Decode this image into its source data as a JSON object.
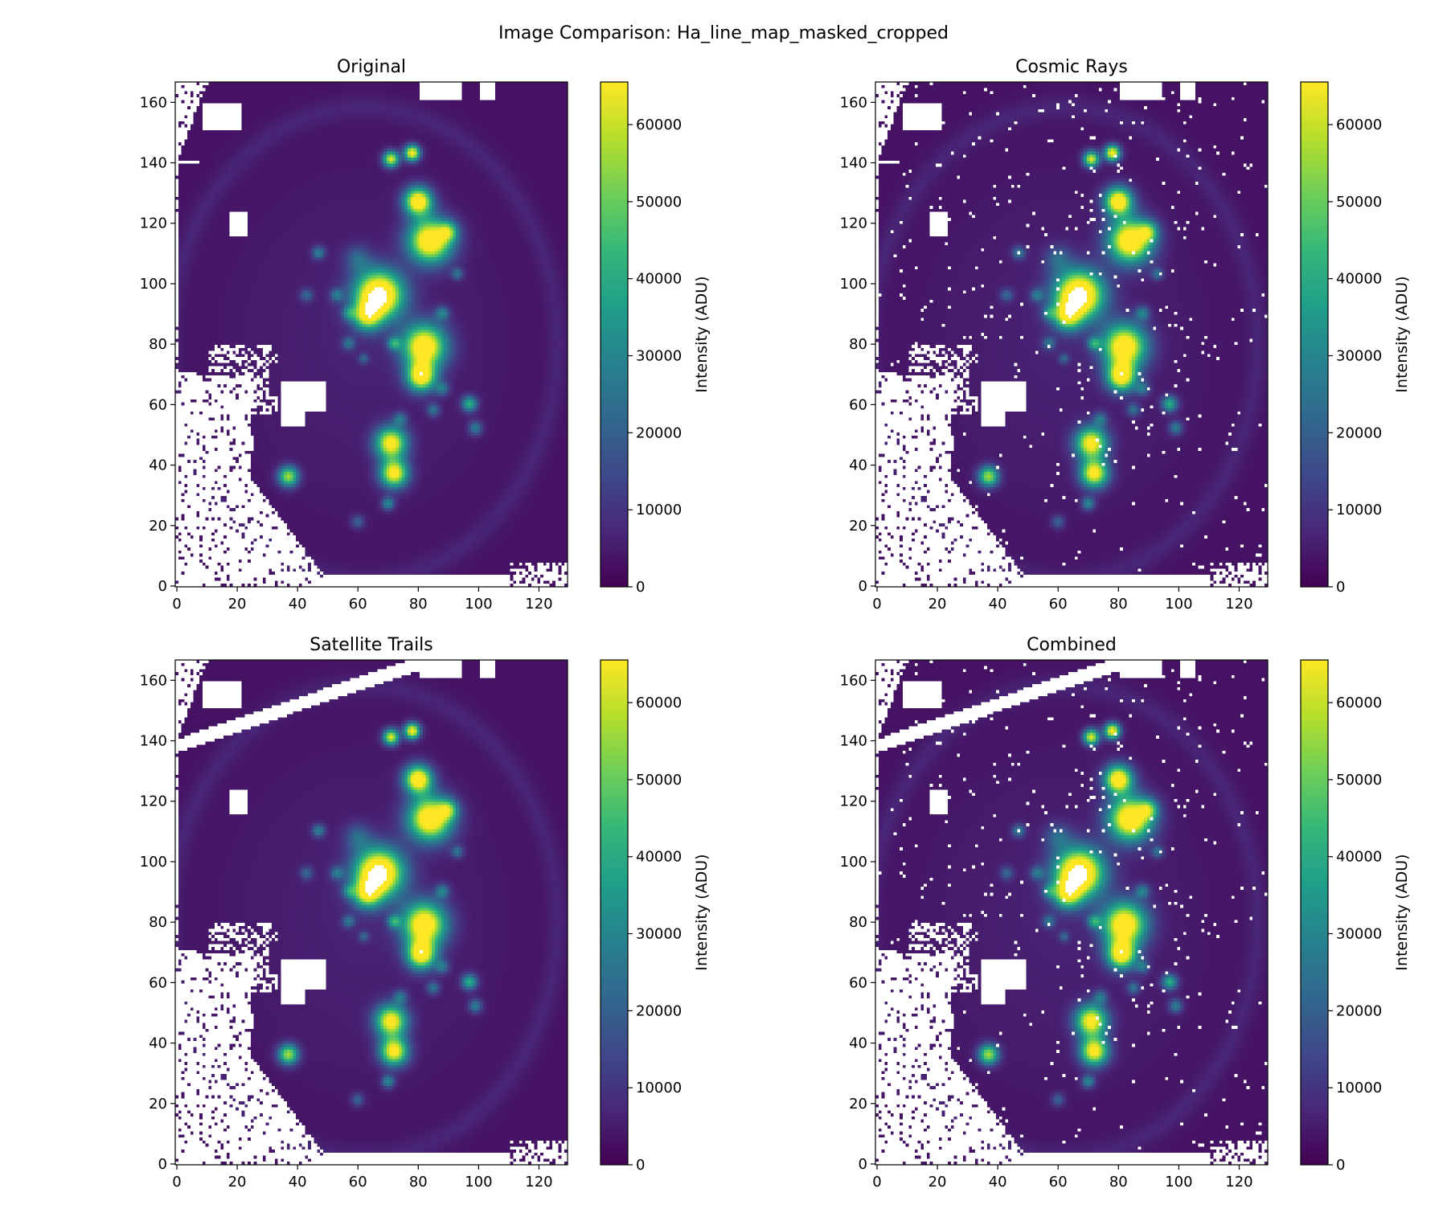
{
  "figure": {
    "suptitle": "Image Comparison: Ha_line_map_masked_cropped"
  },
  "colors": {
    "viridis": [
      "#440154",
      "#482878",
      "#3e4989",
      "#31688e",
      "#26828e",
      "#1f9e89",
      "#35b779",
      "#6ece58",
      "#b5de2b",
      "#fde725"
    ],
    "mask": "#ffffff",
    "axis": "#000000"
  },
  "chart_data": [
    {
      "type": "heatmap",
      "title": "Original",
      "x_ticks": [
        0,
        20,
        40,
        60,
        80,
        100,
        120
      ],
      "y_ticks": [
        0,
        20,
        40,
        60,
        80,
        100,
        120,
        140,
        160
      ],
      "xlim": [
        0,
        130
      ],
      "ylim": [
        0,
        167
      ],
      "colorbar": {
        "label": "Intensity (ADU)",
        "min": 0,
        "max": 65535,
        "ticks": [
          0,
          10000,
          20000,
          30000,
          40000,
          50000,
          60000
        ]
      },
      "artifacts": {
        "cosmic_rays": false,
        "satellite_trail": false
      }
    },
    {
      "type": "heatmap",
      "title": "Cosmic Rays",
      "x_ticks": [
        0,
        20,
        40,
        60,
        80,
        100,
        120
      ],
      "y_ticks": [
        0,
        20,
        40,
        60,
        80,
        100,
        120,
        140,
        160
      ],
      "xlim": [
        0,
        130
      ],
      "ylim": [
        0,
        167
      ],
      "colorbar": {
        "label": "Intensity (ADU)",
        "min": 0,
        "max": 65535,
        "ticks": [
          0,
          10000,
          20000,
          30000,
          40000,
          50000,
          60000
        ]
      },
      "artifacts": {
        "cosmic_rays": true,
        "satellite_trail": false
      }
    },
    {
      "type": "heatmap",
      "title": "Satellite Trails",
      "x_ticks": [
        0,
        20,
        40,
        60,
        80,
        100,
        120
      ],
      "y_ticks": [
        0,
        20,
        40,
        60,
        80,
        100,
        120,
        140,
        160
      ],
      "xlim": [
        0,
        130
      ],
      "ylim": [
        0,
        167
      ],
      "colorbar": {
        "label": "Intensity (ADU)",
        "min": 0,
        "max": 65535,
        "ticks": [
          0,
          10000,
          20000,
          30000,
          40000,
          50000,
          60000
        ]
      },
      "artifacts": {
        "cosmic_rays": false,
        "satellite_trail": true
      }
    },
    {
      "type": "heatmap",
      "title": "Combined",
      "x_ticks": [
        0,
        20,
        40,
        60,
        80,
        100,
        120
      ],
      "y_ticks": [
        0,
        20,
        40,
        60,
        80,
        100,
        120,
        140,
        160
      ],
      "xlim": [
        0,
        130
      ],
      "ylim": [
        0,
        167
      ],
      "colorbar": {
        "label": "Intensity (ADU)",
        "min": 0,
        "max": 65535,
        "ticks": [
          0,
          10000,
          20000,
          30000,
          40000,
          50000,
          60000
        ]
      },
      "artifacts": {
        "cosmic_rays": true,
        "satellite_trail": true
      }
    }
  ]
}
